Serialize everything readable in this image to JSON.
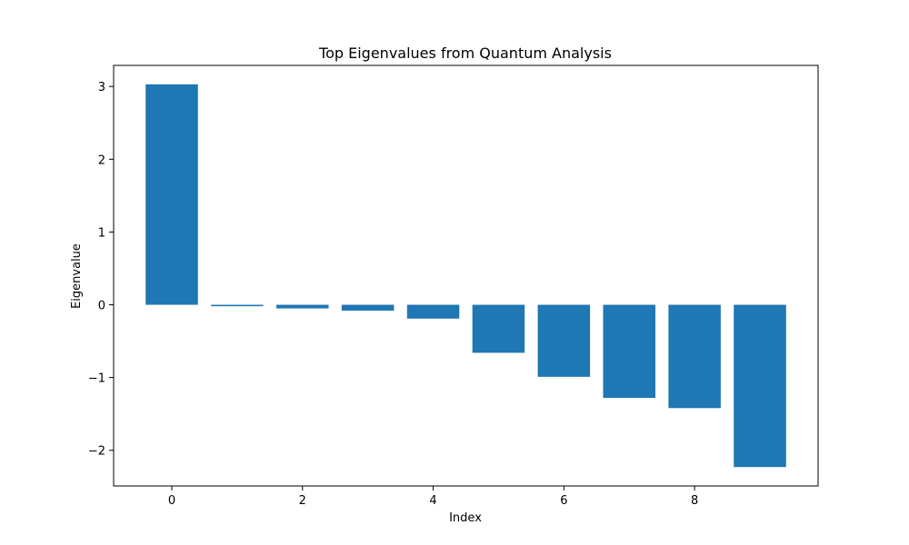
{
  "chart_data": {
    "type": "bar",
    "title": "Top Eigenvalues from Quantum Analysis",
    "xlabel": "Index",
    "ylabel": "Eigenvalue",
    "x": [
      0,
      1,
      2,
      3,
      4,
      5,
      6,
      7,
      8,
      9
    ],
    "values": [
      3.03,
      -0.02,
      -0.05,
      -0.08,
      -0.19,
      -0.66,
      -0.99,
      -1.28,
      -1.42,
      -2.23
    ],
    "xlim": [
      -0.89,
      9.89
    ],
    "ylim": [
      -2.49,
      3.29
    ],
    "xticks": [
      0,
      2,
      4,
      6,
      8
    ],
    "xtick_labels": [
      "0",
      "2",
      "4",
      "6",
      "8"
    ],
    "yticks": [
      -2,
      -1,
      0,
      1,
      2,
      3
    ],
    "ytick_labels": [
      "−2",
      "−1",
      "0",
      "1",
      "2",
      "3"
    ],
    "bar_color": "#1f77b4",
    "grid": false,
    "legend": "none"
  }
}
